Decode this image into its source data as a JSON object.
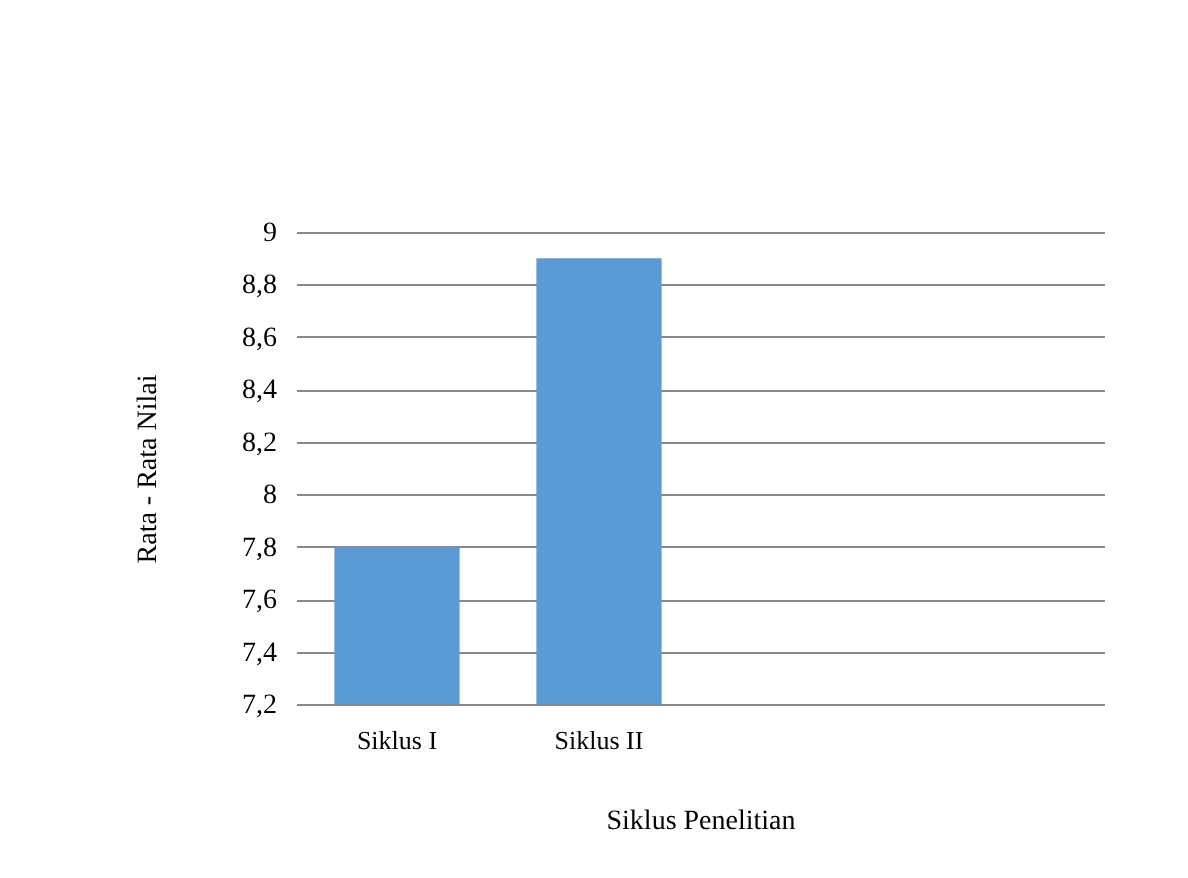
{
  "chart_data": {
    "type": "bar",
    "xlabel": "Siklus Penelitian",
    "ylabel": "Rata - Rata Nilai",
    "categories": [
      "Siklus I",
      "Siklus II",
      null,
      null
    ],
    "series": [
      {
        "color": "#5b9bd5",
        "values": [
          7.8,
          8.9,
          null,
          null
        ]
      }
    ],
    "ylim": [
      7.2,
      9
    ],
    "yticks": [
      {
        "value": 7.2,
        "label": "7,2"
      },
      {
        "value": 7.4,
        "label": "7,4"
      },
      {
        "value": 7.6,
        "label": "7,6"
      },
      {
        "value": 7.8,
        "label": "7,8"
      },
      8,
      {
        "value": 8.2,
        "label": "8,2"
      },
      {
        "value": 8.4,
        "label": "8,4"
      },
      {
        "value": 8.6,
        "label": "8,6"
      },
      {
        "value": 8.8,
        "label": "8,8"
      },
      9
    ],
    "grid": "y",
    "legend": false
  }
}
